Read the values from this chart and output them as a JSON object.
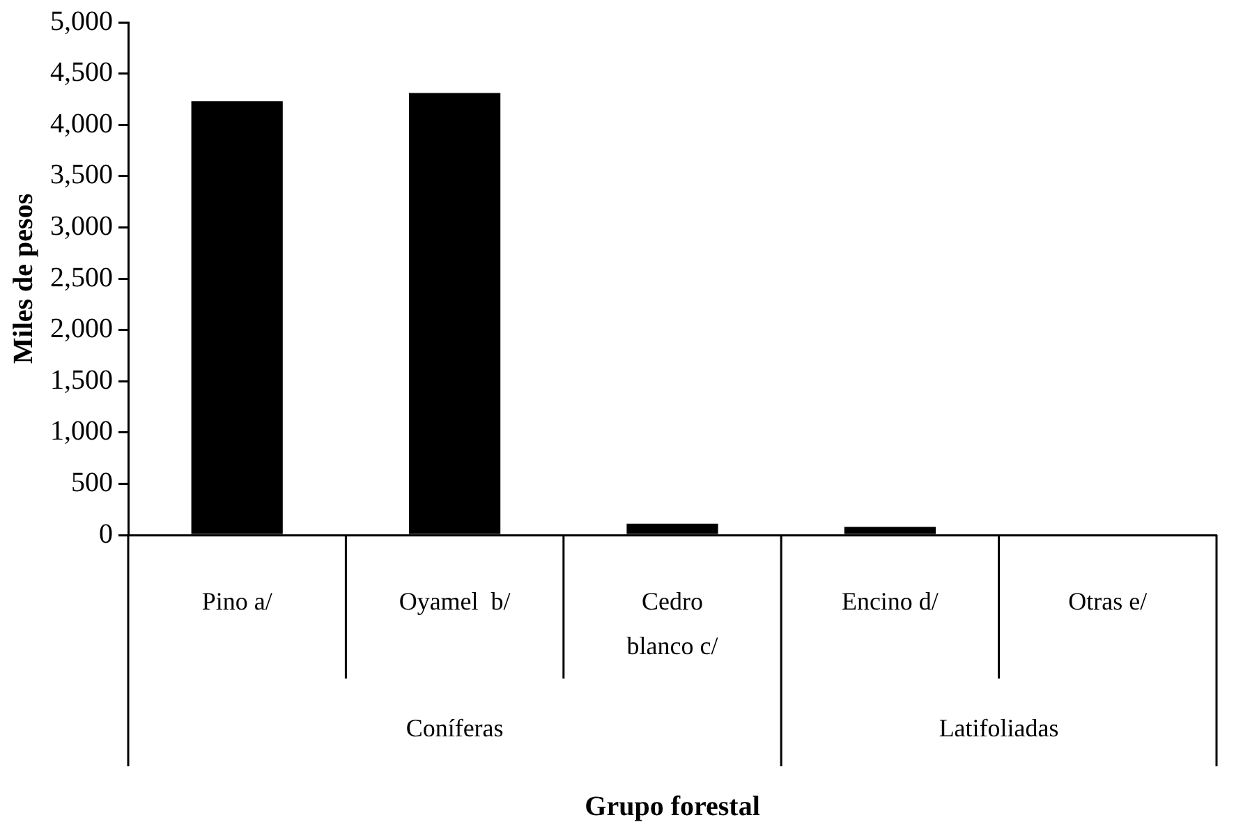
{
  "chart_data": {
    "type": "bar",
    "xlabel": "Grupo forestal",
    "ylabel": "Miles de pesos",
    "categories": [
      "Pino a/",
      "Oyamel  b/",
      "Cedro blanco c/",
      "Encino d/",
      "Otras e/"
    ],
    "values": [
      4230,
      4310,
      110,
      80,
      0
    ],
    "color": "#000000",
    "ylim": [
      0,
      5000
    ],
    "yticks": [
      0,
      500,
      {
        "value": 1000,
        "label": "1,000"
      },
      {
        "value": 1500,
        "label": "1,500"
      },
      {
        "value": 2000,
        "label": "2,000"
      },
      {
        "value": 2500,
        "label": "2,500"
      },
      {
        "value": 3000,
        "label": "3,000"
      },
      {
        "value": 3500,
        "label": "3,500"
      },
      {
        "value": 4000,
        "label": "4,000"
      },
      {
        "value": 4500,
        "label": "4,500"
      },
      {
        "value": 5000,
        "label": "5,000"
      }
    ],
    "annotations": [
      "Coníferas",
      "Latifoliadas"
    ],
    "grid": false,
    "legend": false
  }
}
